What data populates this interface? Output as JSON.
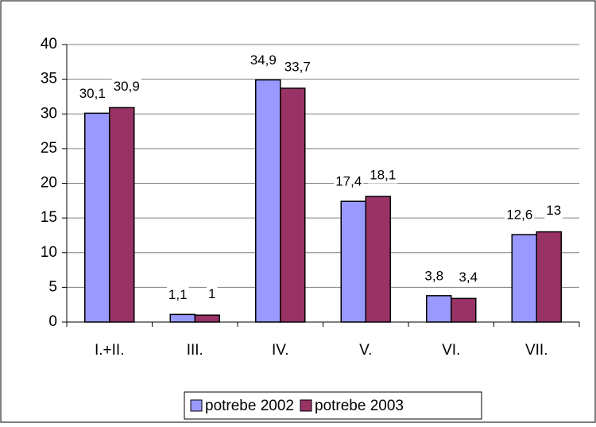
{
  "chart_data": {
    "type": "bar",
    "categories": [
      "I.+II.",
      "III.",
      "IV.",
      "V.",
      "VI.",
      "VII."
    ],
    "series": [
      {
        "name": "potrebe 2002",
        "color": "#9999ff",
        "values": [
          30.1,
          1.1,
          34.9,
          17.4,
          3.8,
          12.6
        ],
        "value_labels": [
          "30,1",
          "1,1",
          "34,9",
          "17,4",
          "3,8",
          "12,6"
        ]
      },
      {
        "name": "potrebe 2003",
        "color": "#993366",
        "values": [
          30.9,
          1,
          33.7,
          18.1,
          3.4,
          13
        ],
        "value_labels": [
          "30,9",
          "1",
          "33,7",
          "18,1",
          "3,4",
          "13"
        ]
      }
    ],
    "ylim": [
      0,
      40
    ],
    "yticks": [
      0,
      5,
      10,
      15,
      20,
      25,
      30,
      35,
      40
    ],
    "grid": true,
    "legend": "bottom"
  }
}
